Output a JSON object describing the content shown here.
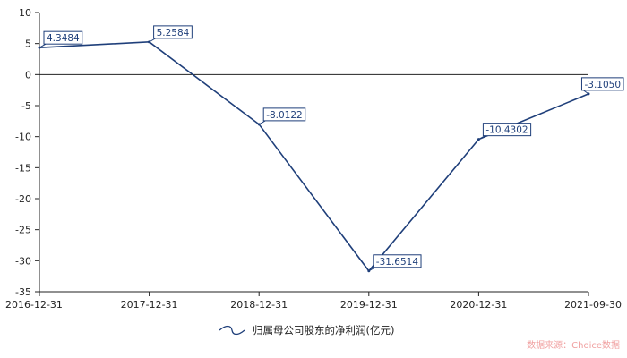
{
  "chart_data": {
    "type": "line",
    "categories": [
      "2016-12-31",
      "2017-12-31",
      "2018-12-31",
      "2019-12-31",
      "2020-12-31",
      "2021-09-30"
    ],
    "series": [
      {
        "name": "归属母公司股东的净利润(亿元)",
        "values": [
          4.3484,
          5.2584,
          -8.0122,
          -31.6514,
          -10.4302,
          -3.105
        ],
        "labels": [
          "4.3484",
          "5.2584",
          "-8.0122",
          "-31.6514",
          "-10.4302",
          "-3.1050"
        ]
      }
    ],
    "y_ticks": [
      10,
      5,
      0,
      -5,
      -10,
      -15,
      -20,
      -25,
      -30,
      -35
    ],
    "ylim": [
      -35,
      10
    ],
    "legend_position": "bottom",
    "line_color": "#1f3f7a"
  },
  "source_text": "数据来源：Choice数据"
}
